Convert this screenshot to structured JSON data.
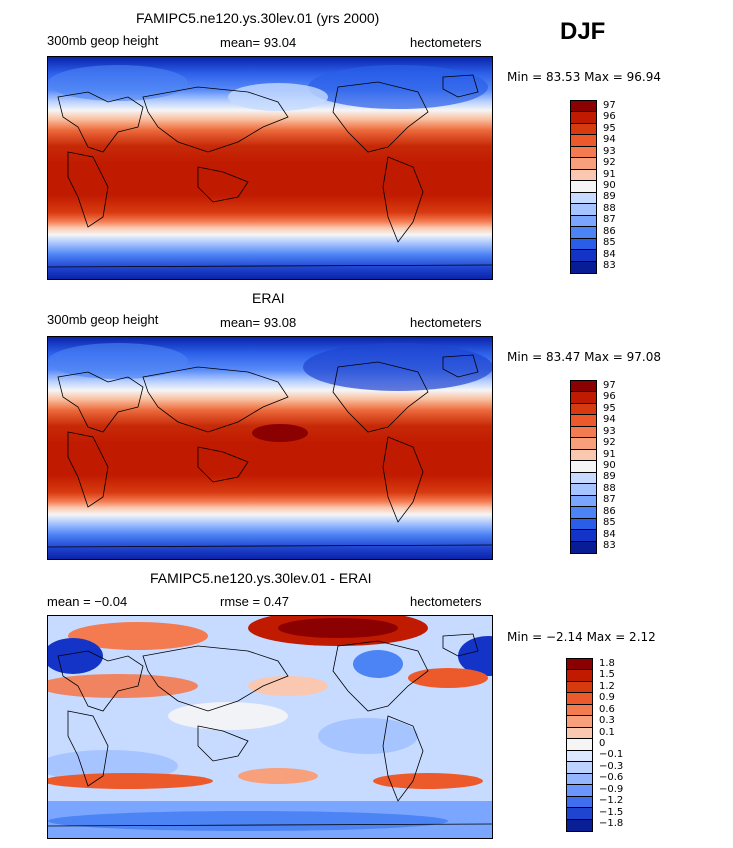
{
  "season": "DJF",
  "panels": [
    {
      "title": "FAMIPC5.ne120.ys.30lev.01 (yrs 2000)",
      "left_label": "300mb geop height",
      "mid_label": "mean=  93.04",
      "right_label": "hectometers",
      "minmax": "Min =  83.53 Max =  96.94",
      "colorbar": {
        "labels": [
          "97",
          "96",
          "95",
          "94",
          "93",
          "92",
          "91",
          "90",
          "89",
          "88",
          "87",
          "86",
          "85",
          "84",
          "83"
        ],
        "colors": [
          "#8b0000",
          "#c01a00",
          "#d83a10",
          "#ec5a2c",
          "#f47a50",
          "#f8a07c",
          "#fac8b0",
          "#f5f5f5",
          "#c6dbff",
          "#a6c4ff",
          "#7aa6ff",
          "#4d84f5",
          "#2a5ee8",
          "#1434c8",
          "#081c96"
        ]
      }
    },
    {
      "title": "ERAI",
      "left_label": "300mb geop height",
      "mid_label": "mean=  93.08",
      "right_label": "hectometers",
      "minmax": "Min =  83.47 Max =  97.08",
      "colorbar": {
        "labels": [
          "97",
          "96",
          "95",
          "94",
          "93",
          "92",
          "91",
          "90",
          "89",
          "88",
          "87",
          "86",
          "85",
          "84",
          "83"
        ],
        "colors": [
          "#8b0000",
          "#c01a00",
          "#d83a10",
          "#ec5a2c",
          "#f47a50",
          "#f8a07c",
          "#fac8b0",
          "#f5f5f5",
          "#c6dbff",
          "#a6c4ff",
          "#7aa6ff",
          "#4d84f5",
          "#2a5ee8",
          "#1434c8",
          "#081c96"
        ]
      }
    },
    {
      "title": "FAMIPC5.ne120.ys.30lev.01 - ERAI",
      "left_label": "mean =   −0.04",
      "mid_label": "rmse =   0.47",
      "right_label": "hectometers",
      "minmax": "Min =  −2.14 Max =   2.12",
      "colorbar": {
        "labels": [
          "1.8",
          "1.5",
          "1.2",
          "0.9",
          "0.6",
          "0.3",
          "0.1",
          "0",
          "−0.1",
          "−0.3",
          "−0.6",
          "−0.9",
          "−1.2",
          "−1.5",
          "−1.8"
        ],
        "colors": [
          "#8b0000",
          "#c01a00",
          "#d83a10",
          "#ec5a2c",
          "#f47a50",
          "#f8a07c",
          "#fac8b0",
          "#f5f5f5",
          "#dce8ff",
          "#bcd2ff",
          "#94b6ff",
          "#6c96ff",
          "#3f6ef0",
          "#1f44d0",
          "#0a1e96"
        ]
      }
    }
  ]
}
